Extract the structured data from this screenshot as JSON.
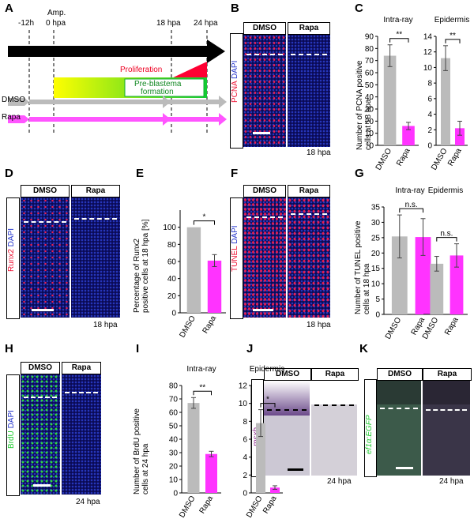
{
  "panels": {
    "A": "A",
    "B": "B",
    "C": "C",
    "D": "D",
    "E": "E",
    "F": "F",
    "G": "G",
    "H": "H",
    "I": "I",
    "J": "J",
    "K": "K"
  },
  "timeline": {
    "t_minus12": "-12h",
    "amp": "Amp.",
    "t0": "0 hpa",
    "t18": "18 hpa",
    "t24": "24 hpa",
    "proliferation": "Proliferation",
    "preblastema_1": "Pre-blastema",
    "preblastema_2": "formation",
    "dmso": "DMSO",
    "rapa": "Rapa",
    "colors": {
      "proliferation": "#ff0033",
      "dmso": "#bbbbbb",
      "rapa": "#ff55ff",
      "green": "#22cc33",
      "yellow": "#ffff00"
    }
  },
  "conditions": {
    "dmso": "DMSO",
    "rapa": "Rapa"
  },
  "B": {
    "stain1": "PCNA",
    "stain2": "DAPI",
    "time": "18 hpa"
  },
  "D": {
    "stain1": "Runx2",
    "stain2": "DAPI",
    "time": "18 hpa"
  },
  "F": {
    "stain1": "TUNEL",
    "stain2": "DAPI",
    "time": "18 hpa"
  },
  "H": {
    "stain1": "BrdU",
    "stain2": "DAPI",
    "time": "24 hpa"
  },
  "J": {
    "stain": "msxb",
    "time": "24 hpa"
  },
  "K": {
    "stain": "ef1α:EGFP",
    "time": "24 hpa"
  },
  "chart_data": [
    {
      "panel": "C",
      "type": "bar",
      "ylabel_1": "Number of PCNA positive",
      "ylabel_2": "cells at 18 hpa",
      "subcharts": [
        {
          "title": "Intra-ray",
          "categories": [
            "DMSO",
            "Rapa"
          ],
          "values": [
            74,
            16
          ],
          "errors": [
            9,
            3
          ],
          "ylim": [
            0,
            90
          ],
          "ticks": [
            0,
            10,
            20,
            30,
            40,
            50,
            60,
            70,
            80,
            90
          ],
          "significance": "**"
        },
        {
          "title": "Epidermis",
          "categories": [
            "DMSO",
            "Rapa"
          ],
          "values": [
            11.2,
            2.2
          ],
          "errors": [
            1.6,
            0.9
          ],
          "ylim": [
            0,
            14
          ],
          "ticks": [
            0,
            2,
            4,
            6,
            8,
            10,
            12,
            14
          ],
          "significance": "**"
        }
      ]
    },
    {
      "panel": "E",
      "type": "bar",
      "ylabel_1": "Percentage of Runx2",
      "ylabel_2": "positive cells at 18 hpa [%]",
      "subcharts": [
        {
          "title": "",
          "categories": [
            "DMSO",
            "Rapa"
          ],
          "values": [
            100,
            61
          ],
          "errors": [
            0,
            7
          ],
          "ylim": [
            0,
            120
          ],
          "ticks": [
            0,
            20,
            40,
            60,
            80,
            100
          ],
          "significance": "*"
        }
      ]
    },
    {
      "panel": "G",
      "type": "bar",
      "ylabel_1": "Number of TUNEL positive",
      "ylabel_2": "cells at 18 hpa",
      "subcharts": [
        {
          "title": "Intra-ray",
          "categories": [
            "DMSO",
            "Rapa"
          ],
          "values": [
            25.4,
            25.2
          ],
          "errors": [
            7,
            6
          ],
          "ylim": [
            0,
            35
          ],
          "ticks": [
            0,
            5,
            10,
            15,
            20,
            25,
            30,
            35
          ],
          "significance": "n.s."
        },
        {
          "title": "Epidermis",
          "categories": [
            "DMSO",
            "Rapa"
          ],
          "values": [
            16.5,
            19.2
          ],
          "errors": [
            2.4,
            3.8
          ],
          "ylim": [
            0,
            35
          ],
          "ticks": [],
          "significance": "n.s."
        }
      ]
    },
    {
      "panel": "I",
      "type": "bar",
      "ylabel_1": "Number of BrdU positive",
      "ylabel_2": "cells at 24 hpa",
      "subcharts": [
        {
          "title": "Intra-ray",
          "categories": [
            "DMSO",
            "Rapa"
          ],
          "values": [
            67,
            29
          ],
          "errors": [
            4,
            2
          ],
          "ylim": [
            0,
            80
          ],
          "ticks": [
            0,
            10,
            20,
            30,
            40,
            50,
            60,
            70,
            80
          ],
          "significance": "**"
        },
        {
          "title": "Epidermis",
          "categories": [
            "DMSO",
            "Rapa"
          ],
          "values": [
            7.8,
            0.6
          ],
          "errors": [
            1.5,
            0.2
          ],
          "ylim": [
            0,
            12
          ],
          "ticks": [
            0,
            2,
            4,
            6,
            8,
            10,
            12
          ],
          "significance": "*"
        }
      ]
    }
  ]
}
